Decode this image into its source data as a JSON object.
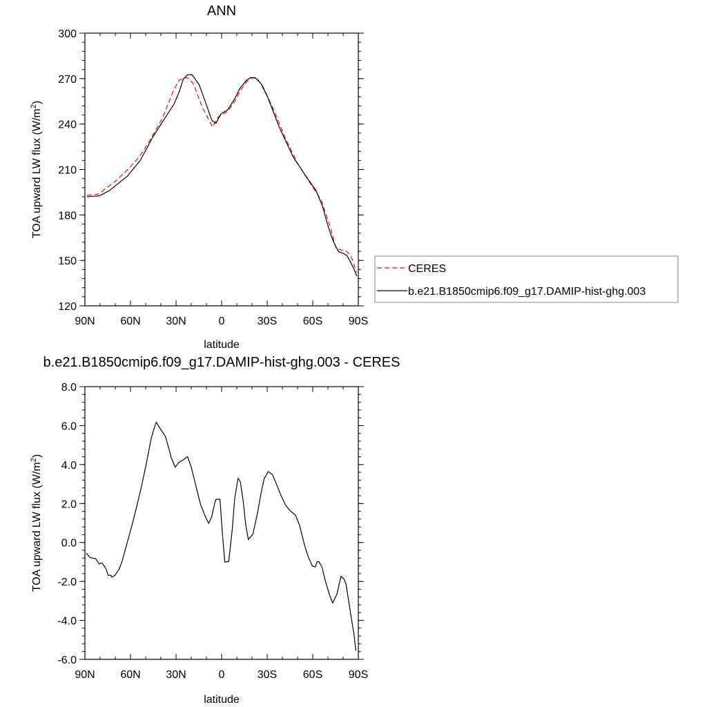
{
  "chart_data": [
    {
      "type": "line",
      "title": "ANN",
      "xlabel": "latitude",
      "ylabel": "TOA upward LW flux (W/m²)",
      "xlim": [
        90,
        -90
      ],
      "ylim": [
        120,
        300
      ],
      "x_ticks": [
        90,
        60,
        30,
        0,
        -30,
        -60,
        -90
      ],
      "x_tick_labels": [
        "90N",
        "60N",
        "30N",
        "0",
        "30S",
        "60S",
        "90S"
      ],
      "y_ticks": [
        120,
        150,
        180,
        210,
        240,
        270,
        300
      ],
      "y_tick_labels": [
        "120",
        "150",
        "180",
        "210",
        "240",
        "270",
        "300"
      ],
      "legend_position": "right-outside",
      "series": [
        {
          "name": "CERES",
          "color": "#ff0000",
          "dash": "dashed",
          "x": [
            88.6,
            84.3,
            80.4,
            76.9,
            69.4,
            61.3,
            53.9,
            46.4,
            38.9,
            31.4,
            27.9,
            24.0,
            21.8,
            18.6,
            12.7,
            8.0,
            5.9,
            2.1,
            0.0,
            -4.2,
            -8.5,
            -12.2,
            -16.5,
            -20.3,
            -23.5,
            -27.0,
            -34.2,
            -42.1,
            -50.0,
            -57.7,
            -65.7,
            -68.0,
            -71.7,
            -73.7,
            -75.3,
            -78.7,
            -81.6,
            -85.0,
            -88.9
          ],
          "y": [
            193.0,
            193.3,
            193.9,
            197.0,
            202.7,
            210.5,
            218.6,
            230.6,
            244.0,
            262.7,
            269.0,
            270.7,
            270.2,
            266.6,
            251.0,
            241.9,
            238.1,
            244.8,
            246.2,
            248.6,
            254.6,
            261.9,
            267.9,
            270.5,
            269.8,
            265.2,
            249.6,
            230.4,
            214.1,
            201.8,
            189.7,
            182.5,
            171.7,
            164.0,
            158.2,
            156.8,
            156.5,
            153.2,
            142.1
          ]
        },
        {
          "name": "b.e21.B1850cmip6.f09_g17.DAMIP-hist-ghg.003",
          "color": "#000000",
          "dash": "solid",
          "x": [
            88.6,
            80.4,
            73.7,
            62.1,
            53.5,
            45.3,
            38.0,
            31.4,
            28.0,
            25.3,
            22.5,
            19.5,
            14.8,
            9.3,
            6.4,
            3.7,
            0.5,
            -4.2,
            -8.5,
            -12.2,
            -16.5,
            -19.1,
            -22.2,
            -26.1,
            -30.6,
            -38.0,
            -47.1,
            -55.5,
            -62.2,
            -66.4,
            -69.8,
            -72.5,
            -74.9,
            -77.1,
            -80.0,
            -82.5,
            -85.0,
            -87.3,
            -89.0
          ],
          "y": [
            192.0,
            192.6,
            196.2,
            205.6,
            216.1,
            231.4,
            242.9,
            253.0,
            261.1,
            269.5,
            272.5,
            272.6,
            266.0,
            250.7,
            242.4,
            240.5,
            246.7,
            249.6,
            256.5,
            263.8,
            268.9,
            270.7,
            270.6,
            266.4,
            257.1,
            237.8,
            218.3,
            205.6,
            196.1,
            185.8,
            173.5,
            165.3,
            159.6,
            155.7,
            154.7,
            153.2,
            148.6,
            143.8,
            139.6
          ]
        }
      ]
    },
    {
      "type": "line",
      "title": "b.e21.B1850cmip6.f09_g17.DAMIP-hist-ghg.003 - CERES",
      "xlabel": "latitude",
      "ylabel": "TOA upward LW flux (W/m²)",
      "xlim": [
        90,
        -90
      ],
      "ylim": [
        -6.0,
        8.0
      ],
      "x_ticks": [
        90,
        60,
        30,
        0,
        -30,
        -60,
        -90
      ],
      "x_tick_labels": [
        "90N",
        "60N",
        "30N",
        "0",
        "30S",
        "60S",
        "90S"
      ],
      "y_ticks": [
        -6.0,
        -4.0,
        -2.0,
        0.0,
        2.0,
        4.0,
        6.0,
        8.0
      ],
      "y_tick_labels": [
        "-6.0",
        "-4.0",
        "-2.0",
        "0.0",
        "2.0",
        "4.0",
        "6.0",
        "8.0"
      ],
      "series": [
        {
          "color": "#000000",
          "dash": "solid",
          "x": [
            89.1,
            86.6,
            82.9,
            80.6,
            78.8,
            76.4,
            74.7,
            73.0,
            72.2,
            70.2,
            67.5,
            65.6,
            62.0,
            58.9,
            55.8,
            52.7,
            49.4,
            46.4,
            44.5,
            43.1,
            39.5,
            37.1,
            34.4,
            33.2,
            30.6,
            27.7,
            24.9,
            22.5,
            20.0,
            18.4,
            16.2,
            13.8,
            12.0,
            10.7,
            8.5,
            6.6,
            4.0,
            3.1,
            1.1,
            -0.5,
            -2.1,
            -4.7,
            -7.1,
            -8.6,
            -10.8,
            -12.3,
            -14.1,
            -16.0,
            -17.6,
            -20.6,
            -23.4,
            -26.0,
            -28.0,
            -30.7,
            -33.4,
            -35.9,
            -39.1,
            -41.9,
            -45.2,
            -48.6,
            -51.3,
            -54.6,
            -56.8,
            -59.7,
            -61.7,
            -62.9,
            -64.1,
            -66.0,
            -68.3,
            -70.8,
            -73.1,
            -75.9,
            -78.6,
            -80.6,
            -81.9,
            -83.2,
            -85.2,
            -87.0,
            -88.4
          ],
          "y": [
            -0.54,
            -0.78,
            -0.83,
            -1.1,
            -1.04,
            -1.31,
            -1.68,
            -1.69,
            -1.78,
            -1.68,
            -1.37,
            -0.98,
            0.04,
            0.91,
            1.88,
            2.9,
            4.11,
            5.33,
            5.85,
            6.17,
            5.73,
            5.46,
            4.74,
            4.35,
            3.87,
            4.14,
            4.26,
            4.41,
            3.87,
            3.37,
            2.66,
            1.94,
            1.58,
            1.32,
            0.98,
            1.31,
            2.19,
            2.22,
            2.22,
            0.48,
            -1.01,
            -0.97,
            0.74,
            2.25,
            3.3,
            3.12,
            2.19,
            0.84,
            0.15,
            0.43,
            1.43,
            2.55,
            3.27,
            3.64,
            3.49,
            3.03,
            2.41,
            1.94,
            1.62,
            1.41,
            0.88,
            -0.14,
            -0.69,
            -1.21,
            -1.25,
            -0.98,
            -0.99,
            -1.25,
            -1.98,
            -2.64,
            -3.11,
            -2.65,
            -1.73,
            -1.88,
            -2.13,
            -2.78,
            -3.79,
            -4.65,
            -5.56
          ]
        }
      ]
    }
  ]
}
